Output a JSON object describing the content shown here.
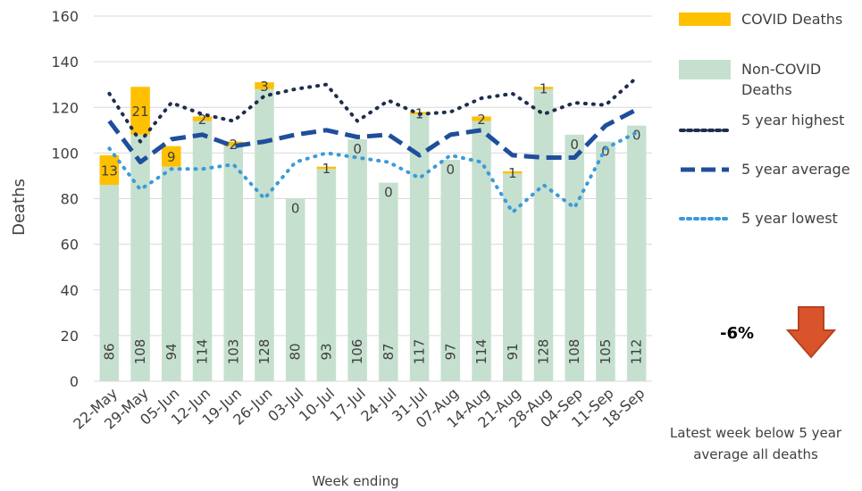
{
  "chart_data": {
    "type": "bar",
    "stacked": true,
    "xlabel": "Week ending",
    "ylabel": "Deaths",
    "ylim": [
      0,
      160
    ],
    "yticks": [
      0,
      20,
      40,
      60,
      80,
      100,
      120,
      140,
      160
    ],
    "grid": true,
    "legend_position": "right",
    "categories": [
      "22-May",
      "29-May",
      "05-Jun",
      "12-Jun",
      "19-Jun",
      "26-Jun",
      "03-Jul",
      "10-Jul",
      "17-Jul",
      "24-Jul",
      "31-Jul",
      "07-Aug",
      "14-Aug",
      "21-Aug",
      "28-Aug",
      "04-Sep",
      "11-Sep",
      "18-Sep"
    ],
    "series": [
      {
        "name": "Non-COVID Deaths",
        "kind": "bar",
        "color": "#c6e0cf",
        "values": [
          86,
          108,
          94,
          114,
          103,
          128,
          80,
          93,
          106,
          87,
          117,
          97,
          114,
          91,
          128,
          108,
          105,
          112
        ]
      },
      {
        "name": "COVID Deaths",
        "kind": "bar",
        "color": "#ffc000",
        "values": [
          13,
          21,
          9,
          2,
          2,
          3,
          0,
          1,
          0,
          0,
          1,
          0,
          2,
          1,
          1,
          0,
          0,
          0
        ]
      },
      {
        "name": "5 year highest",
        "kind": "line",
        "style": "dotted",
        "color": "#1f2d4e",
        "values": [
          126,
          105,
          122,
          117,
          114,
          125,
          128,
          130,
          114,
          123,
          117,
          118,
          124,
          126,
          117,
          122,
          121,
          133
        ]
      },
      {
        "name": "5 year average",
        "kind": "line",
        "style": "dashed",
        "color": "#1f4e9c",
        "values": [
          114,
          96,
          106,
          108,
          103,
          105,
          108,
          110,
          107,
          108,
          99,
          108,
          110,
          99,
          98,
          98,
          112,
          119
        ]
      },
      {
        "name": "5 year lowest",
        "kind": "line",
        "style": "dotted",
        "color": "#3a9bd9",
        "values": [
          102,
          84,
          93,
          93,
          95,
          80,
          96,
          100,
          98,
          96,
          89,
          99,
          96,
          74,
          86,
          76,
          102,
          109
        ]
      }
    ]
  },
  "annotation": {
    "percent_change": "-6%",
    "arrow_icon": "down-arrow-icon",
    "arrow_color": "#d9542a",
    "note": "Latest week below 5 year average all deaths"
  }
}
